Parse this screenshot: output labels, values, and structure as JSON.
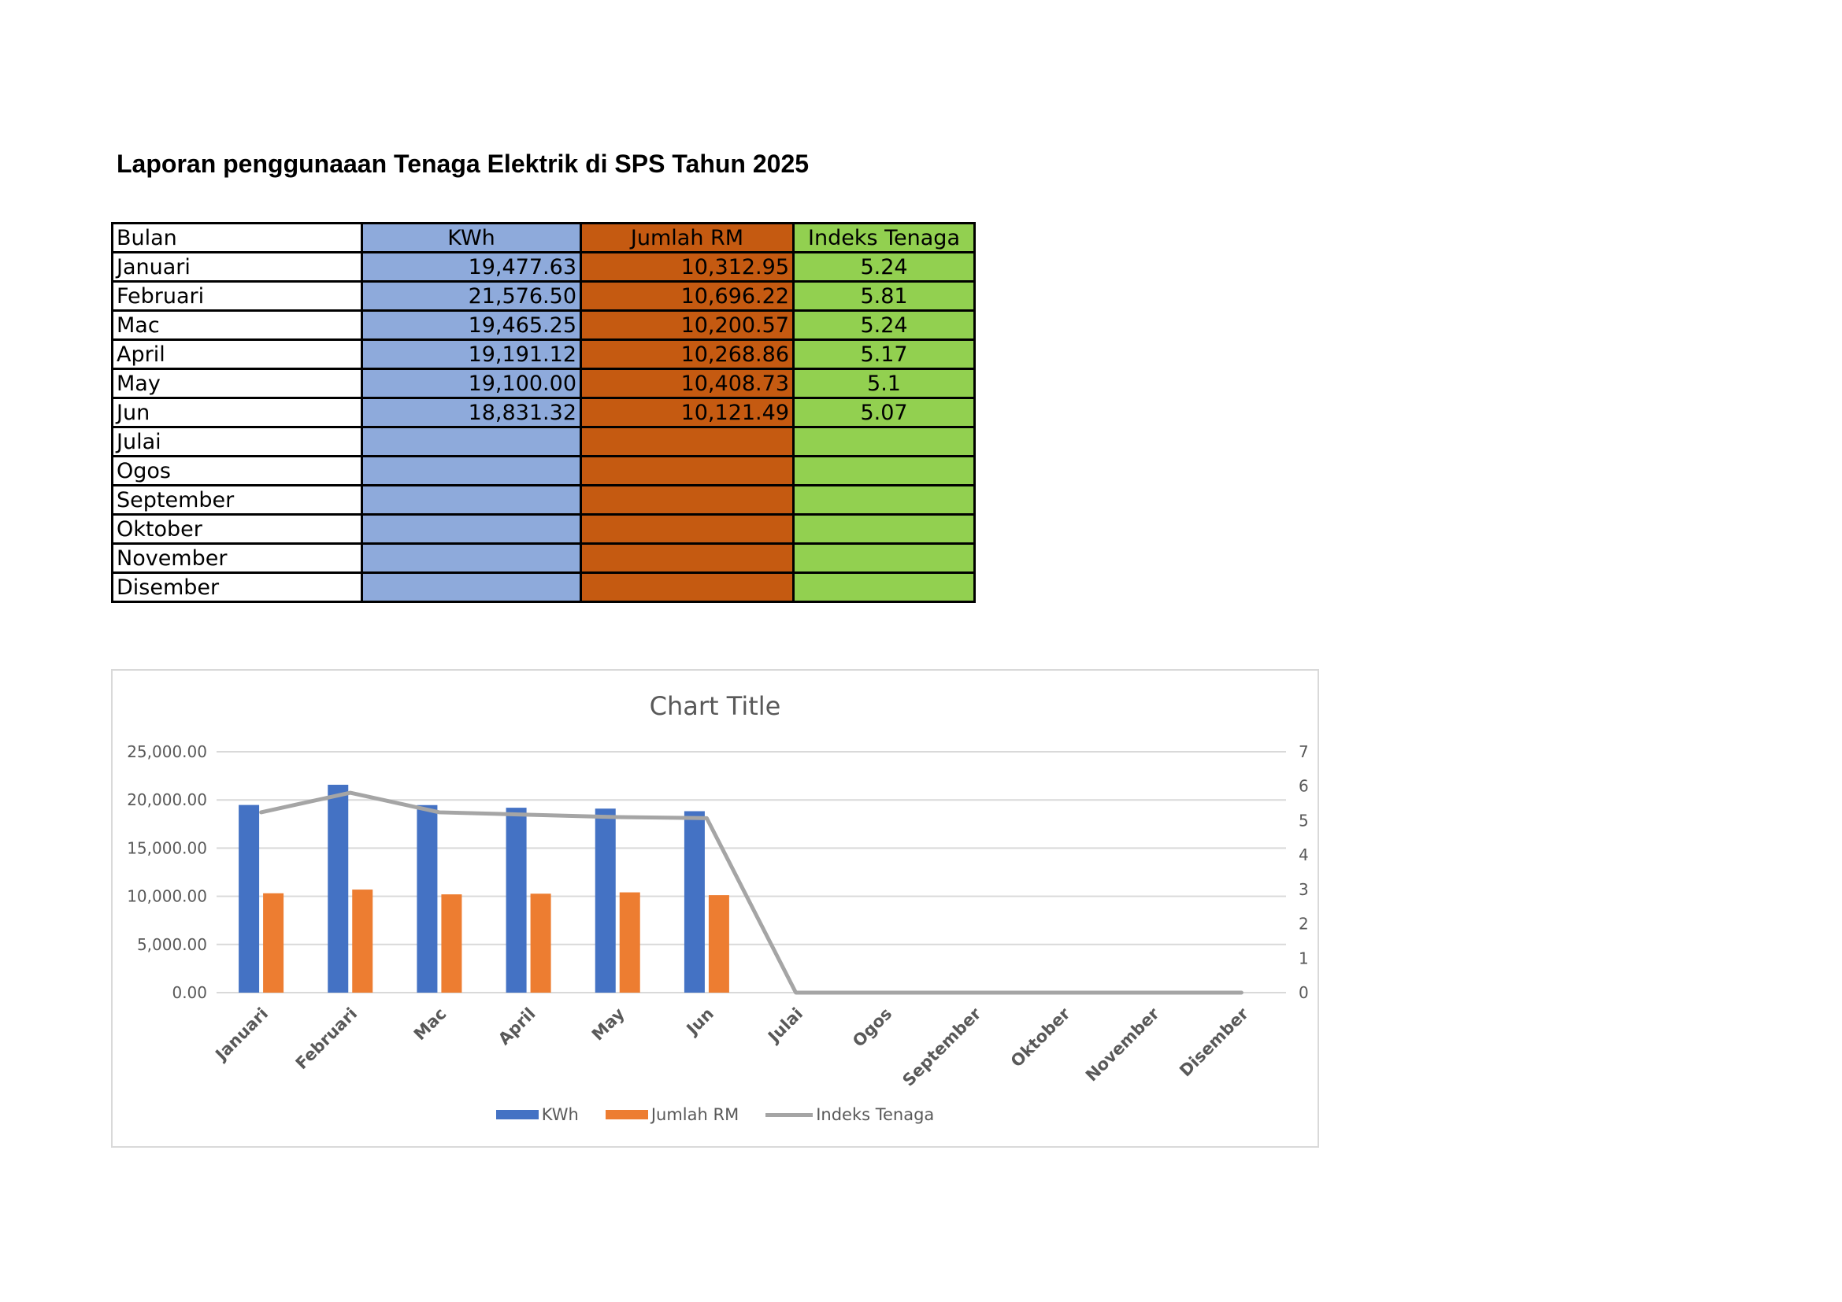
{
  "document": {
    "title": "Laporan penggunaaan Tenaga Elektrik di SPS Tahun 2025"
  },
  "table": {
    "headers": {
      "bulan": "Bulan",
      "kwh": "KWh",
      "rm": "Jumlah RM",
      "idx": "Indeks Tenaga"
    },
    "rows": [
      {
        "bulan": "Januari",
        "kwh": "19,477.63",
        "rm": "10,312.95",
        "idx": "5.24"
      },
      {
        "bulan": "Februari",
        "kwh": "21,576.50",
        "rm": "10,696.22",
        "idx": "5.81"
      },
      {
        "bulan": "Mac",
        "kwh": "19,465.25",
        "rm": "10,200.57",
        "idx": "5.24"
      },
      {
        "bulan": "April",
        "kwh": "19,191.12",
        "rm": "10,268.86",
        "idx": "5.17"
      },
      {
        "bulan": "May",
        "kwh": "19,100.00",
        "rm": "10,408.73",
        "idx": "5.1"
      },
      {
        "bulan": "Jun",
        "kwh": "18,831.32",
        "rm": "10,121.49",
        "idx": "5.07"
      },
      {
        "bulan": "Julai",
        "kwh": "",
        "rm": "",
        "idx": ""
      },
      {
        "bulan": "Ogos",
        "kwh": "",
        "rm": "",
        "idx": ""
      },
      {
        "bulan": "September",
        "kwh": "",
        "rm": "",
        "idx": ""
      },
      {
        "bulan": "Oktober",
        "kwh": "",
        "rm": "",
        "idx": ""
      },
      {
        "bulan": "November",
        "kwh": "",
        "rm": "",
        "idx": ""
      },
      {
        "bulan": "Disember",
        "kwh": "",
        "rm": "",
        "idx": ""
      }
    ],
    "colors": {
      "kwh": "#8eaadb",
      "rm": "#c55a11",
      "idx": "#92d050"
    }
  },
  "chart_data": {
    "type": "bar",
    "title": "Chart Title",
    "categories": [
      "Januari",
      "Februari",
      "Mac",
      "April",
      "May",
      "Jun",
      "Julai",
      "Ogos",
      "September",
      "Oktober",
      "November",
      "Disember"
    ],
    "series": [
      {
        "name": "KWh",
        "kind": "bar",
        "axis": "primary",
        "color": "#4472c4",
        "values": [
          19477.63,
          21576.5,
          19465.25,
          19191.12,
          19100.0,
          18831.32,
          null,
          null,
          null,
          null,
          null,
          null
        ]
      },
      {
        "name": "Jumlah RM",
        "kind": "bar",
        "axis": "primary",
        "color": "#ed7d31",
        "values": [
          10312.95,
          10696.22,
          10200.57,
          10268.86,
          10408.73,
          10121.49,
          null,
          null,
          null,
          null,
          null,
          null
        ]
      },
      {
        "name": "Indeks Tenaga",
        "kind": "line",
        "axis": "secondary",
        "color": "#a5a5a5",
        "values": [
          5.24,
          5.81,
          5.24,
          5.17,
          5.1,
          5.07,
          0,
          0,
          0,
          0,
          0,
          0
        ]
      }
    ],
    "y_primary": {
      "range": [
        0,
        25000
      ],
      "ticks": [
        0,
        5000,
        10000,
        15000,
        20000,
        25000
      ],
      "tick_labels": [
        "0.00",
        "5,000.00",
        "10,000.00",
        "15,000.00",
        "20,000.00",
        "25,000.00"
      ]
    },
    "y_secondary": {
      "range": [
        0,
        7
      ],
      "ticks": [
        0,
        1,
        2,
        3,
        4,
        5,
        6,
        7
      ],
      "tick_labels": [
        "0",
        "1",
        "2",
        "3",
        "4",
        "5",
        "6",
        "7"
      ]
    },
    "gridlines": true,
    "legend": {
      "position": "bottom",
      "entries": [
        "KWh",
        "Jumlah RM",
        "Indeks Tenaga"
      ]
    },
    "xlabel": "",
    "ylabel": ""
  }
}
